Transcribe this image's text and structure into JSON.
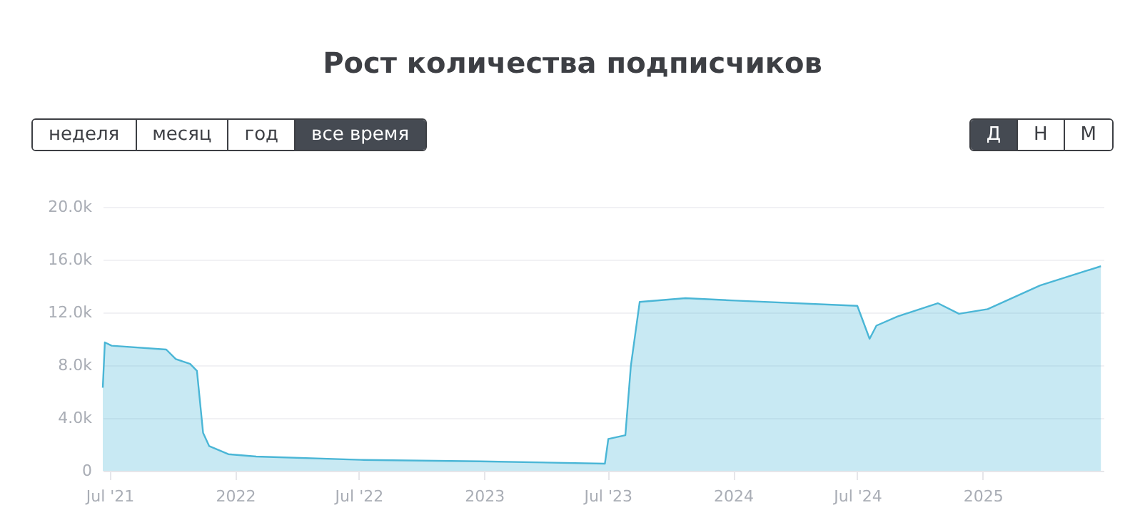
{
  "chart_data": {
    "type": "area",
    "title": "Рост количества подписчиков",
    "annotations": [
      "неделя",
      "месяц",
      "год",
      "все время",
      "Д",
      "Н",
      "М"
    ],
    "x": [
      "2021-06-21",
      "2021-06-24",
      "2021-07-04",
      "2021-09-22",
      "2021-10-06",
      "2021-10-27",
      "2021-11-06",
      "2021-11-15",
      "2021-11-24",
      "2021-12-22",
      "2022-02-01",
      "2022-07-04",
      "2022-12-26",
      "2023-06-27",
      "2023-07-02",
      "2023-07-27",
      "2023-08-04",
      "2023-08-17",
      "2023-10-23",
      "2024-01-04",
      "2024-07-01",
      "2024-07-19",
      "2024-07-29",
      "2024-08-29",
      "2024-10-27",
      "2024-11-27",
      "2025-01-08",
      "2025-03-26",
      "2025-06-23"
    ],
    "series": [
      {
        "color": "#4ab6d6",
        "values": [
          6300,
          9730,
          9480,
          9190,
          8470,
          8100,
          7570,
          2880,
          1870,
          1260,
          1080,
          830,
          720,
          540,
          2410,
          2700,
          7930,
          12800,
          13080,
          12900,
          12500,
          10000,
          11000,
          11700,
          12700,
          11900,
          12250,
          14050,
          15500
        ]
      }
    ],
    "xlim": [
      "2021-06-21",
      "2025-06-27"
    ],
    "xticks": [
      {
        "value": "2021-07-01",
        "label": "Jul '21"
      },
      {
        "value": "2022-01-01",
        "label": "2022"
      },
      {
        "value": "2022-07-01",
        "label": "Jul '22"
      },
      {
        "value": "2023-01-01",
        "label": "2023"
      },
      {
        "value": "2023-07-01",
        "label": "Jul '23"
      },
      {
        "value": "2024-01-01",
        "label": "2024"
      },
      {
        "value": "2024-07-01",
        "label": "Jul '24"
      },
      {
        "value": "2025-01-01",
        "label": "2025"
      }
    ],
    "ylim": [
      0,
      20000
    ],
    "yticks": [
      {
        "value": 0,
        "label": "0"
      },
      {
        "value": 4000,
        "label": "4.0k"
      },
      {
        "value": 8000,
        "label": "8.0k"
      },
      {
        "value": 12000,
        "label": "12.0k"
      },
      {
        "value": 16000,
        "label": "16.0k"
      },
      {
        "value": 20000,
        "label": "20.0k"
      }
    ],
    "grid": "y",
    "legend": false
  }
}
